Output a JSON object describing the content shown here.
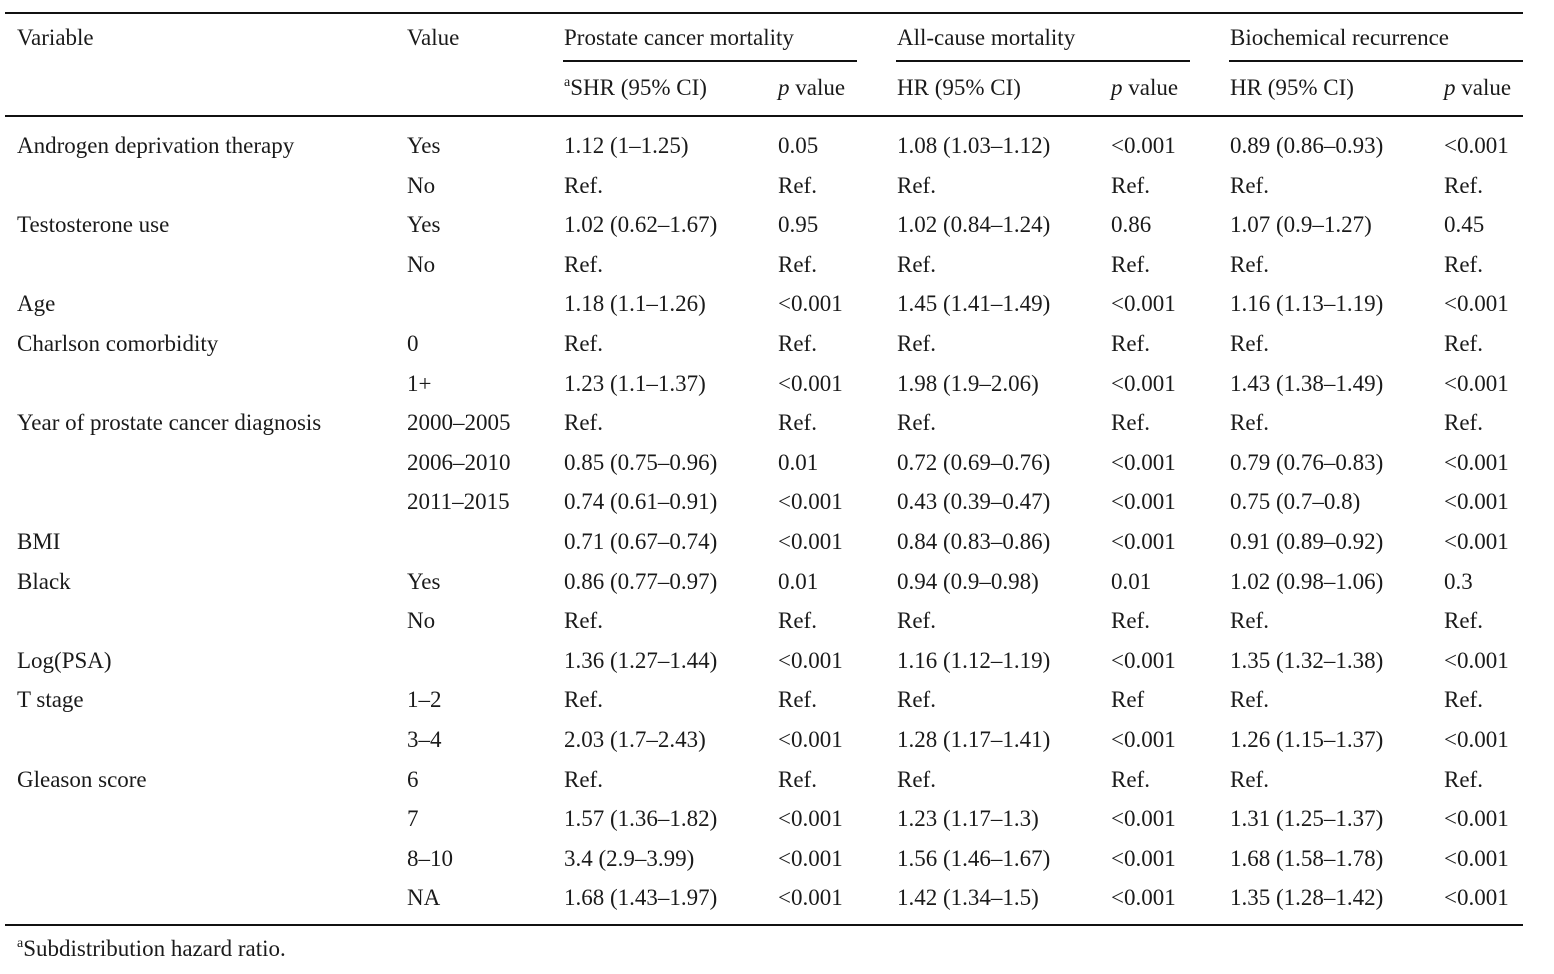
{
  "table": {
    "groups": [
      "Prostate cancer mortality",
      "All-cause mortality",
      "Biochemical recurrence"
    ],
    "headers": {
      "variable": "Variable",
      "value": "Value",
      "shr_sup": "a",
      "shr": "SHR (95% CI)",
      "hr": "HR (95% CI)",
      "p_italic": "p",
      "p_rest": " value"
    },
    "rows": [
      {
        "variable": "Androgen deprivation therapy",
        "value": "Yes",
        "c1": "1.12 (1–1.25)",
        "p1": "0.05",
        "c2": "1.08 (1.03–1.12)",
        "p2": "<0.001",
        "c3": "0.89 (0.86–0.93)",
        "p3": "<0.001"
      },
      {
        "variable": "",
        "value": "No",
        "c1": "Ref.",
        "p1": "Ref.",
        "c2": "Ref.",
        "p2": "Ref.",
        "c3": "Ref.",
        "p3": "Ref."
      },
      {
        "variable": "Testosterone use",
        "value": "Yes",
        "c1": "1.02 (0.62–1.67)",
        "p1": "0.95",
        "c2": "1.02 (0.84–1.24)",
        "p2": "0.86",
        "c3": "1.07 (0.9–1.27)",
        "p3": "0.45"
      },
      {
        "variable": "",
        "value": "No",
        "c1": "Ref.",
        "p1": "Ref.",
        "c2": "Ref.",
        "p2": "Ref.",
        "c3": "Ref.",
        "p3": "Ref."
      },
      {
        "variable": "Age",
        "value": "",
        "c1": "1.18 (1.1–1.26)",
        "p1": "<0.001",
        "c2": "1.45 (1.41–1.49)",
        "p2": "<0.001",
        "c3": "1.16 (1.13–1.19)",
        "p3": "<0.001"
      },
      {
        "variable": "Charlson comorbidity",
        "value": "0",
        "c1": "Ref.",
        "p1": "Ref.",
        "c2": "Ref.",
        "p2": "Ref.",
        "c3": "Ref.",
        "p3": "Ref."
      },
      {
        "variable": "",
        "value": "1+",
        "c1": "1.23 (1.1–1.37)",
        "p1": "<0.001",
        "c2": "1.98 (1.9–2.06)",
        "p2": "<0.001",
        "c3": "1.43 (1.38–1.49)",
        "p3": "<0.001"
      },
      {
        "variable": "Year of prostate cancer diagnosis",
        "value": "2000–2005",
        "c1": "Ref.",
        "p1": "Ref.",
        "c2": "Ref.",
        "p2": "Ref.",
        "c3": "Ref.",
        "p3": "Ref."
      },
      {
        "variable": "",
        "value": "2006–2010",
        "c1": "0.85 (0.75–0.96)",
        "p1": "0.01",
        "c2": "0.72 (0.69–0.76)",
        "p2": "<0.001",
        "c3": "0.79 (0.76–0.83)",
        "p3": "<0.001"
      },
      {
        "variable": "",
        "value": "2011–2015",
        "c1": "0.74 (0.61–0.91)",
        "p1": "<0.001",
        "c2": "0.43 (0.39–0.47)",
        "p2": "<0.001",
        "c3": "0.75 (0.7–0.8)",
        "p3": "<0.001"
      },
      {
        "variable": "BMI",
        "value": "",
        "c1": "0.71 (0.67–0.74)",
        "p1": "<0.001",
        "c2": "0.84 (0.83–0.86)",
        "p2": "<0.001",
        "c3": "0.91 (0.89–0.92)",
        "p3": "<0.001"
      },
      {
        "variable": "Black",
        "value": "Yes",
        "c1": "0.86 (0.77–0.97)",
        "p1": "0.01",
        "c2": "0.94 (0.9–0.98)",
        "p2": "0.01",
        "c3": "1.02 (0.98–1.06)",
        "p3": "0.3"
      },
      {
        "variable": "",
        "value": "No",
        "c1": "Ref.",
        "p1": "Ref.",
        "c2": "Ref.",
        "p2": "Ref.",
        "c3": "Ref.",
        "p3": "Ref."
      },
      {
        "variable": "Log(PSA)",
        "value": "",
        "c1": "1.36 (1.27–1.44)",
        "p1": "<0.001",
        "c2": "1.16 (1.12–1.19)",
        "p2": "<0.001",
        "c3": "1.35 (1.32–1.38)",
        "p3": "<0.001"
      },
      {
        "variable": "T stage",
        "value": "1–2",
        "c1": "Ref.",
        "p1": "Ref.",
        "c2": "Ref.",
        "p2": "Ref",
        "c3": "Ref.",
        "p3": "Ref."
      },
      {
        "variable": "",
        "value": "3–4",
        "c1": "2.03 (1.7–2.43)",
        "p1": "<0.001",
        "c2": "1.28 (1.17–1.41)",
        "p2": "<0.001",
        "c3": "1.26 (1.15–1.37)",
        "p3": "<0.001"
      },
      {
        "variable": "Gleason score",
        "value": "6",
        "c1": "Ref.",
        "p1": "Ref.",
        "c2": "Ref.",
        "p2": "Ref.",
        "c3": "Ref.",
        "p3": "Ref."
      },
      {
        "variable": "",
        "value": "7",
        "c1": "1.57 (1.36–1.82)",
        "p1": "<0.001",
        "c2": "1.23 (1.17–1.3)",
        "p2": "<0.001",
        "c3": "1.31 (1.25–1.37)",
        "p3": "<0.001"
      },
      {
        "variable": "",
        "value": "8–10",
        "c1": "3.4 (2.9–3.99)",
        "p1": "<0.001",
        "c2": "1.56 (1.46–1.67)",
        "p2": "<0.001",
        "c3": "1.68 (1.58–1.78)",
        "p3": "<0.001"
      },
      {
        "variable": "",
        "value": "NA",
        "c1": "1.68 (1.43–1.97)",
        "p1": "<0.001",
        "c2": "1.42 (1.34–1.5)",
        "p2": "<0.001",
        "c3": "1.35 (1.28–1.42)",
        "p3": "<0.001"
      }
    ]
  },
  "footnote": {
    "sup": "a",
    "text": "Subdistribution hazard ratio."
  }
}
